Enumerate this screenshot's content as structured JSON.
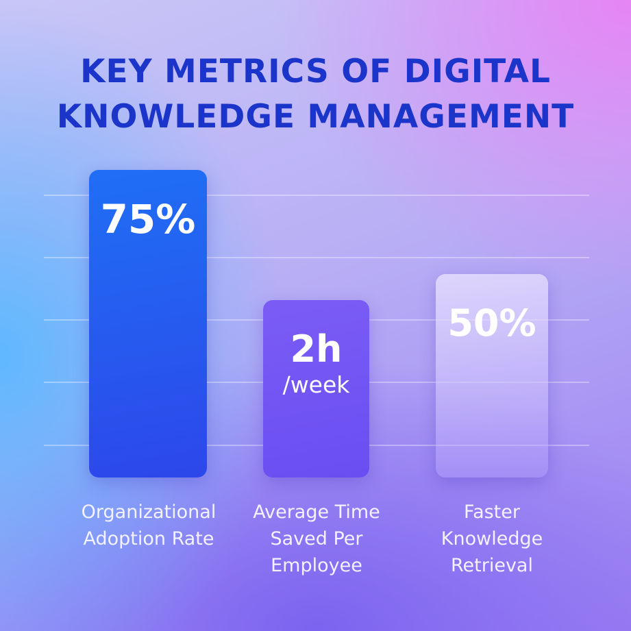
{
  "title": "KEY METRICS OF DIGITAL KNOWLEDGE MANAGEMENT",
  "metrics": [
    {
      "value": "75%",
      "label": "Organizational Adoption Rate"
    },
    {
      "value": "2h",
      "unit": "/week",
      "label": "Average Time Saved Per Employee"
    },
    {
      "value": "50%",
      "label": "Faster Knowledge Retrieval"
    }
  ]
}
